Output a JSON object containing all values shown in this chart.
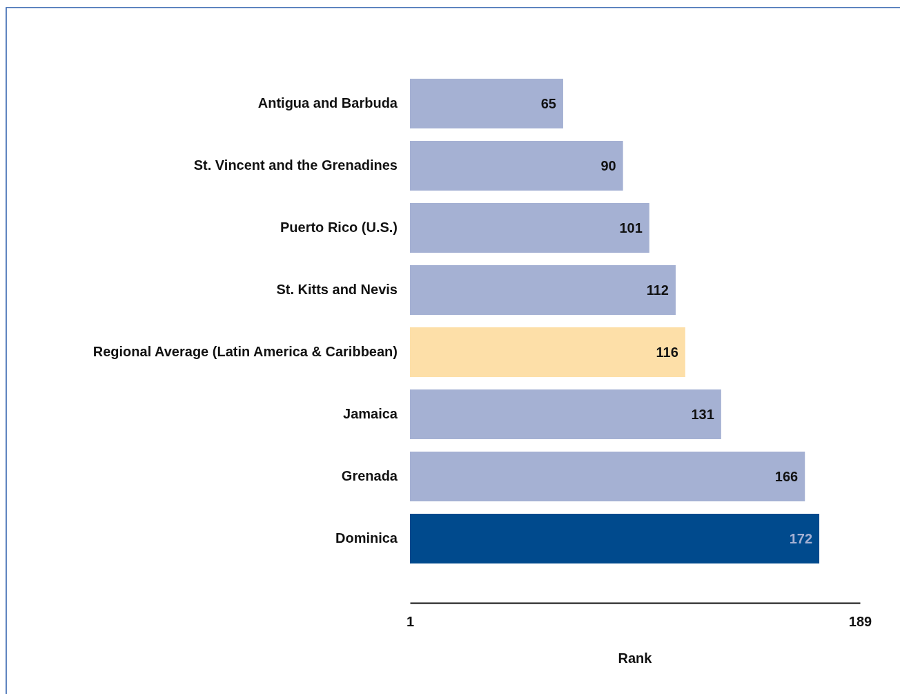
{
  "chart_data": {
    "type": "bar",
    "orientation": "horizontal",
    "categories": [
      "Antigua and Barbuda",
      "St. Vincent and the Grenadines",
      "Puerto Rico (U.S.)",
      "St. Kitts and Nevis",
      "Regional Average (Latin America & Caribbean)",
      "Jamaica",
      "Grenada",
      "Dominica"
    ],
    "values": [
      65,
      90,
      101,
      112,
      116,
      131,
      166,
      172
    ],
    "colors": [
      "#a5b1d3",
      "#a5b1d3",
      "#a5b1d3",
      "#a5b1d3",
      "#fddfa8",
      "#a5b1d3",
      "#a5b1d3",
      "#004a8d"
    ],
    "xlim": [
      1,
      189
    ],
    "xticks": [
      1,
      189
    ],
    "xlabel": "Rank",
    "data_labels": true
  }
}
